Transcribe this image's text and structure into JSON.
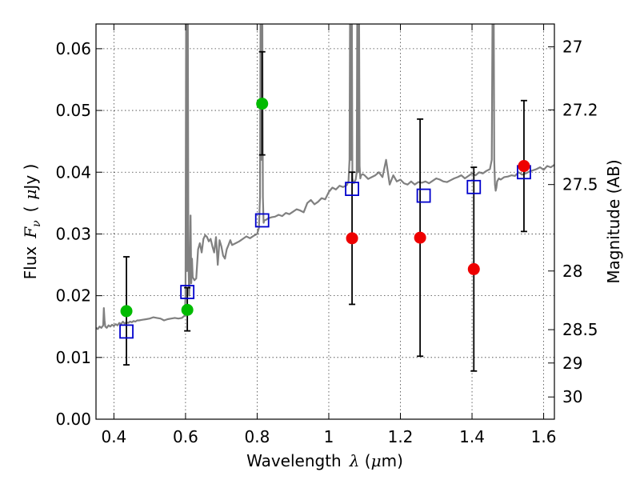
{
  "chart_data": {
    "type": "scatter",
    "xlabel": "Wavelength",
    "xlabel_symbol": "λ",
    "xlabel_unit_pre": " (",
    "xlabel_unit_mu": "μ",
    "xlabel_unit_post": "m)",
    "ylabel": "Flux",
    "ylabel_symbol_F": "F",
    "ylabel_symbol_sub": "ν",
    "ylabel_unit_pre": "(",
    "ylabel_unit_mu": "μ",
    "ylabel_unit_post": "Jy )",
    "y2label": "Magnitude (AB)",
    "xlim": [
      0.35,
      1.63
    ],
    "ylim": [
      0.0,
      0.064
    ],
    "xticks": [
      0.4,
      0.6,
      0.8,
      1.0,
      1.2,
      1.4,
      1.6
    ],
    "xtick_labels": [
      "0.4",
      "0.6",
      "0.8",
      "1",
      "1.2",
      "1.4",
      "1.6"
    ],
    "yticks": [
      0.0,
      0.01,
      0.02,
      0.03,
      0.04,
      0.05,
      0.06
    ],
    "ytick_labels": [
      "0.00",
      "0.01",
      "0.02",
      "0.03",
      "0.04",
      "0.05",
      "0.06"
    ],
    "y2ticks": [
      {
        "label": "27",
        "flux": 0.0603
      },
      {
        "label": "27.2",
        "flux": 0.0501
      },
      {
        "label": "27.5",
        "flux": 0.038
      },
      {
        "label": "28",
        "flux": 0.024
      },
      {
        "label": "28.5",
        "flux": 0.0145
      },
      {
        "label": "29",
        "flux": 0.0091
      },
      {
        "label": "30",
        "flux": 0.0036
      }
    ],
    "grid": true,
    "colors": {
      "spectrum": "#808080",
      "model_box": "#0000cc",
      "green": "#00bb00",
      "red": "#ee0000",
      "errorbar": "#000000"
    },
    "series": [
      {
        "kind": "green-points",
        "points": [
          {
            "x": 0.435,
            "y": 0.0175,
            "err": [
              0.0088,
              0.0263
            ]
          },
          {
            "x": 0.605,
            "y": 0.0177,
            "err": [
              0.0143,
              0.0213
            ]
          },
          {
            "x": 0.814,
            "y": 0.0511,
            "err": [
              0.0428,
              0.0595
            ]
          }
        ]
      },
      {
        "kind": "red-points",
        "points": [
          {
            "x": 1.065,
            "y": 0.0293,
            "err": [
              0.0186,
              0.04
            ]
          },
          {
            "x": 1.255,
            "y": 0.0294,
            "err": [
              0.0102,
              0.0486
            ]
          },
          {
            "x": 1.405,
            "y": 0.0243,
            "err": [
              0.0078,
              0.0408
            ]
          },
          {
            "x": 1.545,
            "y": 0.041,
            "err": [
              0.0304,
              0.0516
            ]
          }
        ]
      },
      {
        "kind": "model-boxes",
        "points": [
          {
            "x": 0.435,
            "y": 0.0142
          },
          {
            "x": 0.605,
            "y": 0.0206
          },
          {
            "x": 0.814,
            "y": 0.0322
          },
          {
            "x": 1.065,
            "y": 0.0373
          },
          {
            "x": 1.265,
            "y": 0.0362
          },
          {
            "x": 1.405,
            "y": 0.0376
          },
          {
            "x": 1.545,
            "y": 0.04
          }
        ]
      },
      {
        "kind": "spectrum",
        "x": [
          0.35,
          0.355,
          0.36,
          0.365,
          0.37,
          0.372,
          0.374,
          0.376,
          0.38,
          0.385,
          0.39,
          0.395,
          0.4,
          0.405,
          0.41,
          0.415,
          0.42,
          0.425,
          0.43,
          0.435,
          0.44,
          0.445,
          0.45,
          0.455,
          0.46,
          0.465,
          0.47,
          0.48,
          0.49,
          0.5,
          0.51,
          0.52,
          0.53,
          0.54,
          0.55,
          0.56,
          0.57,
          0.58,
          0.59,
          0.598,
          0.6,
          0.602,
          0.604,
          0.606,
          0.608,
          0.61,
          0.612,
          0.614,
          0.616,
          0.618,
          0.62,
          0.625,
          0.63,
          0.635,
          0.64,
          0.645,
          0.65,
          0.655,
          0.66,
          0.665,
          0.67,
          0.675,
          0.68,
          0.685,
          0.69,
          0.695,
          0.7,
          0.705,
          0.71,
          0.715,
          0.72,
          0.725,
          0.73,
          0.74,
          0.75,
          0.76,
          0.77,
          0.78,
          0.79,
          0.8,
          0.805,
          0.808,
          0.81,
          0.812,
          0.814,
          0.816,
          0.818,
          0.82,
          0.825,
          0.83,
          0.84,
          0.85,
          0.86,
          0.87,
          0.88,
          0.89,
          0.9,
          0.91,
          0.92,
          0.93,
          0.94,
          0.95,
          0.96,
          0.97,
          0.98,
          0.99,
          1.0,
          1.01,
          1.02,
          1.03,
          1.04,
          1.05,
          1.055,
          1.058,
          1.06,
          1.062,
          1.064,
          1.066,
          1.07,
          1.075,
          1.078,
          1.08,
          1.082,
          1.084,
          1.086,
          1.088,
          1.09,
          1.095,
          1.1,
          1.11,
          1.12,
          1.13,
          1.14,
          1.15,
          1.16,
          1.17,
          1.18,
          1.19,
          1.2,
          1.21,
          1.22,
          1.23,
          1.24,
          1.25,
          1.26,
          1.27,
          1.28,
          1.29,
          1.3,
          1.31,
          1.32,
          1.33,
          1.34,
          1.35,
          1.36,
          1.37,
          1.38,
          1.39,
          1.4,
          1.41,
          1.42,
          1.43,
          1.44,
          1.45,
          1.455,
          1.458,
          1.46,
          1.462,
          1.464,
          1.466,
          1.468,
          1.47,
          1.475,
          1.48,
          1.49,
          1.5,
          1.51,
          1.52,
          1.53,
          1.54,
          1.55,
          1.56,
          1.57,
          1.58,
          1.59,
          1.6,
          1.61,
          1.62,
          1.63
        ],
        "y": [
          0.0148,
          0.0146,
          0.015,
          0.0148,
          0.0152,
          0.018,
          0.016,
          0.015,
          0.0148,
          0.0152,
          0.015,
          0.0153,
          0.0151,
          0.0154,
          0.0152,
          0.0156,
          0.0154,
          0.0158,
          0.0155,
          0.0157,
          0.0156,
          0.0158,
          0.0157,
          0.0159,
          0.0158,
          0.016,
          0.016,
          0.0161,
          0.0162,
          0.0163,
          0.0165,
          0.0164,
          0.0163,
          0.016,
          0.0162,
          0.0163,
          0.0164,
          0.0163,
          0.0164,
          0.0168,
          0.02,
          0.075,
          0.024,
          0.075,
          0.026,
          0.02,
          0.024,
          0.033,
          0.022,
          0.026,
          0.023,
          0.0225,
          0.0228,
          0.0275,
          0.0285,
          0.027,
          0.0292,
          0.0298,
          0.0295,
          0.0288,
          0.0292,
          0.028,
          0.027,
          0.0295,
          0.025,
          0.029,
          0.028,
          0.0265,
          0.026,
          0.0275,
          0.0282,
          0.029,
          0.0282,
          0.0285,
          0.0288,
          0.0292,
          0.0296,
          0.0293,
          0.0297,
          0.03,
          0.031,
          0.036,
          0.075,
          0.042,
          0.075,
          0.036,
          0.0318,
          0.0322,
          0.0323,
          0.0325,
          0.0327,
          0.0328,
          0.0331,
          0.0329,
          0.0334,
          0.0332,
          0.0336,
          0.034,
          0.0338,
          0.0335,
          0.035,
          0.0355,
          0.0348,
          0.0352,
          0.0358,
          0.0356,
          0.0368,
          0.0375,
          0.0372,
          0.0378,
          0.0376,
          0.0379,
          0.0385,
          0.042,
          0.075,
          0.042,
          0.075,
          0.039,
          0.0382,
          0.0388,
          0.04,
          0.075,
          0.04,
          0.075,
          0.041,
          0.039,
          0.0395,
          0.0397,
          0.0395,
          0.0389,
          0.0392,
          0.0395,
          0.04,
          0.0392,
          0.042,
          0.038,
          0.0395,
          0.0385,
          0.0388,
          0.0382,
          0.038,
          0.0385,
          0.038,
          0.0384,
          0.0383,
          0.0385,
          0.0382,
          0.0386,
          0.039,
          0.0388,
          0.0385,
          0.0384,
          0.0387,
          0.039,
          0.0392,
          0.0395,
          0.039,
          0.0394,
          0.0398,
          0.0395,
          0.04,
          0.0398,
          0.0402,
          0.0405,
          0.042,
          0.075,
          0.075,
          0.042,
          0.038,
          0.037,
          0.0375,
          0.0385,
          0.039,
          0.0388,
          0.0392,
          0.0393,
          0.0395,
          0.0394,
          0.04,
          0.0396,
          0.0398,
          0.0401,
          0.0403,
          0.0405,
          0.0408,
          0.0404,
          0.041,
          0.0408,
          0.0412
        ]
      }
    ]
  }
}
